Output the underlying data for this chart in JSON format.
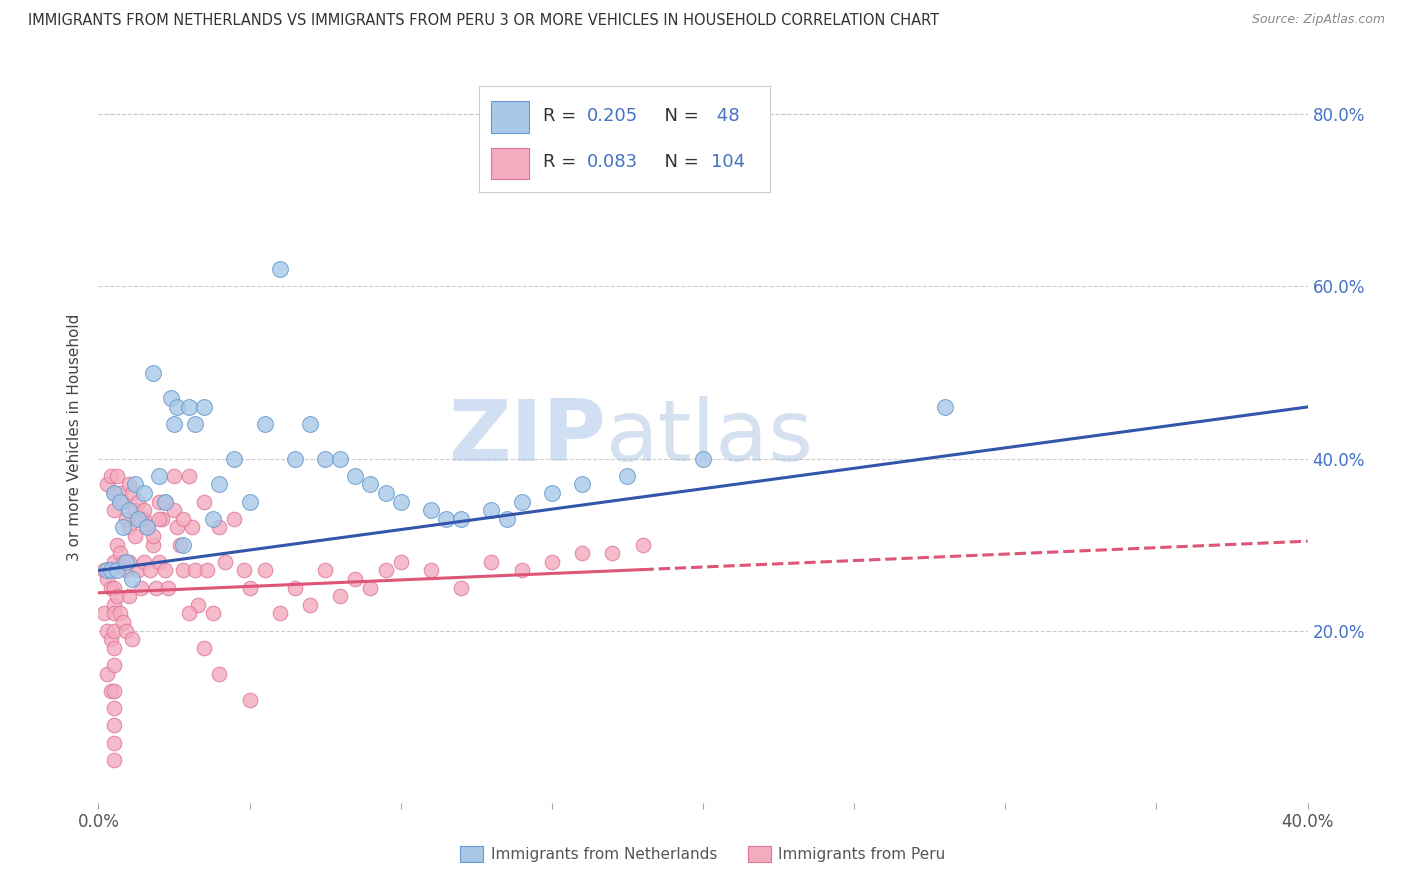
{
  "title": "IMMIGRANTS FROM NETHERLANDS VS IMMIGRANTS FROM PERU 3 OR MORE VEHICLES IN HOUSEHOLD CORRELATION CHART",
  "source": "Source: ZipAtlas.com",
  "ylabel": "3 or more Vehicles in Household",
  "xlim": [
    0.0,
    0.4
  ],
  "ylim": [
    0.0,
    0.85
  ],
  "netherlands_color": "#a8c8e8",
  "netherlands_edge": "#6699cc",
  "netherlands_line_color": "#3355aa",
  "peru_color": "#f4aabf",
  "peru_edge": "#dd7799",
  "peru_line_color": "#dd5577",
  "R_netherlands": 0.205,
  "N_netherlands": 48,
  "R_peru": 0.083,
  "N_peru": 104,
  "watermark_zip": "ZIP",
  "watermark_atlas": "atlas",
  "nl_x": [
    0.003,
    0.004,
    0.005,
    0.006,
    0.007,
    0.008,
    0.009,
    0.01,
    0.011,
    0.012,
    0.013,
    0.015,
    0.016,
    0.018,
    0.02,
    0.022,
    0.024,
    0.025,
    0.026,
    0.028,
    0.03,
    0.032,
    0.035,
    0.038,
    0.04,
    0.045,
    0.05,
    0.055,
    0.06,
    0.065,
    0.07,
    0.075,
    0.08,
    0.085,
    0.09,
    0.095,
    0.1,
    0.11,
    0.115,
    0.12,
    0.13,
    0.135,
    0.14,
    0.15,
    0.16,
    0.175,
    0.2,
    0.28
  ],
  "nl_y": [
    0.27,
    0.27,
    0.36,
    0.27,
    0.35,
    0.32,
    0.28,
    0.34,
    0.26,
    0.37,
    0.33,
    0.36,
    0.32,
    0.5,
    0.38,
    0.35,
    0.47,
    0.44,
    0.46,
    0.3,
    0.46,
    0.44,
    0.46,
    0.33,
    0.37,
    0.4,
    0.35,
    0.44,
    0.62,
    0.4,
    0.44,
    0.4,
    0.4,
    0.38,
    0.37,
    0.36,
    0.35,
    0.34,
    0.33,
    0.33,
    0.34,
    0.33,
    0.35,
    0.36,
    0.37,
    0.38,
    0.4,
    0.46
  ],
  "peru_x": [
    0.002,
    0.002,
    0.003,
    0.003,
    0.003,
    0.004,
    0.004,
    0.004,
    0.005,
    0.005,
    0.005,
    0.005,
    0.005,
    0.005,
    0.005,
    0.005,
    0.005,
    0.005,
    0.005,
    0.005,
    0.006,
    0.006,
    0.007,
    0.007,
    0.008,
    0.008,
    0.009,
    0.009,
    0.01,
    0.01,
    0.01,
    0.011,
    0.012,
    0.013,
    0.014,
    0.015,
    0.015,
    0.016,
    0.017,
    0.018,
    0.019,
    0.02,
    0.02,
    0.021,
    0.022,
    0.023,
    0.025,
    0.026,
    0.027,
    0.028,
    0.03,
    0.031,
    0.032,
    0.033,
    0.035,
    0.036,
    0.038,
    0.04,
    0.042,
    0.045,
    0.048,
    0.05,
    0.055,
    0.06,
    0.065,
    0.07,
    0.075,
    0.08,
    0.085,
    0.09,
    0.095,
    0.1,
    0.11,
    0.12,
    0.13,
    0.14,
    0.15,
    0.16,
    0.17,
    0.18,
    0.003,
    0.004,
    0.005,
    0.005,
    0.006,
    0.007,
    0.008,
    0.009,
    0.01,
    0.011,
    0.012,
    0.013,
    0.014,
    0.015,
    0.016,
    0.018,
    0.02,
    0.022,
    0.025,
    0.028,
    0.03,
    0.035,
    0.04,
    0.05
  ],
  "peru_y": [
    0.27,
    0.22,
    0.26,
    0.2,
    0.15,
    0.25,
    0.19,
    0.13,
    0.28,
    0.25,
    0.23,
    0.2,
    0.18,
    0.16,
    0.13,
    0.11,
    0.09,
    0.07,
    0.05,
    0.22,
    0.3,
    0.24,
    0.29,
    0.22,
    0.28,
    0.21,
    0.27,
    0.2,
    0.32,
    0.28,
    0.24,
    0.19,
    0.31,
    0.27,
    0.25,
    0.33,
    0.28,
    0.32,
    0.27,
    0.3,
    0.25,
    0.35,
    0.28,
    0.33,
    0.27,
    0.25,
    0.38,
    0.32,
    0.3,
    0.27,
    0.38,
    0.32,
    0.27,
    0.23,
    0.35,
    0.27,
    0.22,
    0.32,
    0.28,
    0.33,
    0.27,
    0.25,
    0.27,
    0.22,
    0.25,
    0.23,
    0.27,
    0.24,
    0.26,
    0.25,
    0.27,
    0.28,
    0.27,
    0.25,
    0.28,
    0.27,
    0.28,
    0.29,
    0.29,
    0.3,
    0.37,
    0.38,
    0.36,
    0.34,
    0.38,
    0.36,
    0.35,
    0.33,
    0.37,
    0.36,
    0.34,
    0.35,
    0.33,
    0.34,
    0.32,
    0.31,
    0.33,
    0.35,
    0.34,
    0.33,
    0.22,
    0.18,
    0.15,
    0.12
  ]
}
